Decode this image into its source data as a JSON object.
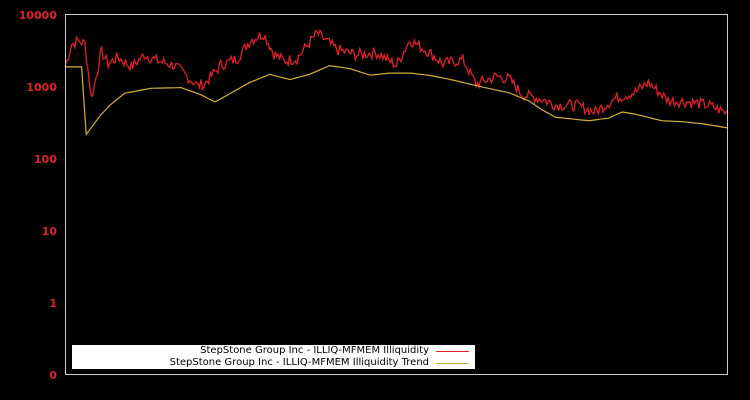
{
  "chart_data": {
    "type": "line",
    "title": "",
    "xlabel": "",
    "ylabel": "",
    "yscale": "log",
    "ylim": [
      0,
      10000
    ],
    "y_ticks": [
      "10000",
      "1000",
      "100",
      "10",
      "1",
      "0"
    ],
    "x_ticks": [],
    "grid": false,
    "legend_position": "lower-left",
    "background": "#000000",
    "axis_color": "#cccccc",
    "tick_label_color": "#e0202a",
    "series": [
      {
        "name": "StepStone Group Inc - ILLIQ-MFMEM Illiquidity",
        "color": "#e0202a",
        "x": [
          0,
          0.01,
          0.02,
          0.03,
          0.04,
          0.055,
          0.065,
          0.08,
          0.1,
          0.12,
          0.14,
          0.165,
          0.2,
          0.21,
          0.235,
          0.26,
          0.28,
          0.3,
          0.315,
          0.33,
          0.35,
          0.38,
          0.41,
          0.44,
          0.47,
          0.5,
          0.52,
          0.55,
          0.57,
          0.6,
          0.62,
          0.65,
          0.67,
          0.69,
          0.72,
          0.74,
          0.77,
          0.8,
          0.83,
          0.86,
          0.88,
          0.91,
          0.94,
          0.97,
          1.0
        ],
        "values": [
          1900,
          3900,
          4400,
          4000,
          700,
          3100,
          2100,
          2600,
          1900,
          2800,
          2300,
          2000,
          1050,
          1100,
          2000,
          2500,
          4500,
          5500,
          2900,
          2300,
          2500,
          5600,
          3300,
          2800,
          3000,
          2000,
          4500,
          3000,
          2100,
          2400,
          1100,
          1400,
          1300,
          780,
          680,
          560,
          560,
          450,
          700,
          850,
          1150,
          650,
          620,
          560,
          430
        ]
      },
      {
        "name": "StepStone Group Inc - ILLIQ-MFMEM Illiquidity Trend",
        "color": "#d4b030",
        "x": [
          0,
          0.025,
          0.032,
          0.053,
          0.068,
          0.09,
          0.13,
          0.175,
          0.205,
          0.226,
          0.248,
          0.278,
          0.309,
          0.339,
          0.369,
          0.399,
          0.43,
          0.46,
          0.49,
          0.52,
          0.55,
          0.58,
          0.61,
          0.64,
          0.67,
          0.7,
          0.72,
          0.74,
          0.79,
          0.82,
          0.84,
          0.86,
          0.9,
          0.93,
          0.96,
          1.0
        ],
        "values": [
          1900,
          1900,
          220,
          400,
          560,
          820,
          960,
          980,
          780,
          620,
          800,
          1150,
          1500,
          1270,
          1500,
          1980,
          1800,
          1460,
          1560,
          1560,
          1450,
          1280,
          1100,
          950,
          830,
          640,
          480,
          380,
          340,
          370,
          450,
          420,
          340,
          330,
          310,
          270
        ]
      }
    ]
  },
  "legend": {
    "items": [
      {
        "label": "StepStone Group Inc - ILLIQ-MFMEM Illiquidity",
        "color": "#e0202a"
      },
      {
        "label": "StepStone Group Inc - ILLIQ-MFMEM Illiquidity Trend",
        "color": "#d4b030"
      }
    ]
  }
}
